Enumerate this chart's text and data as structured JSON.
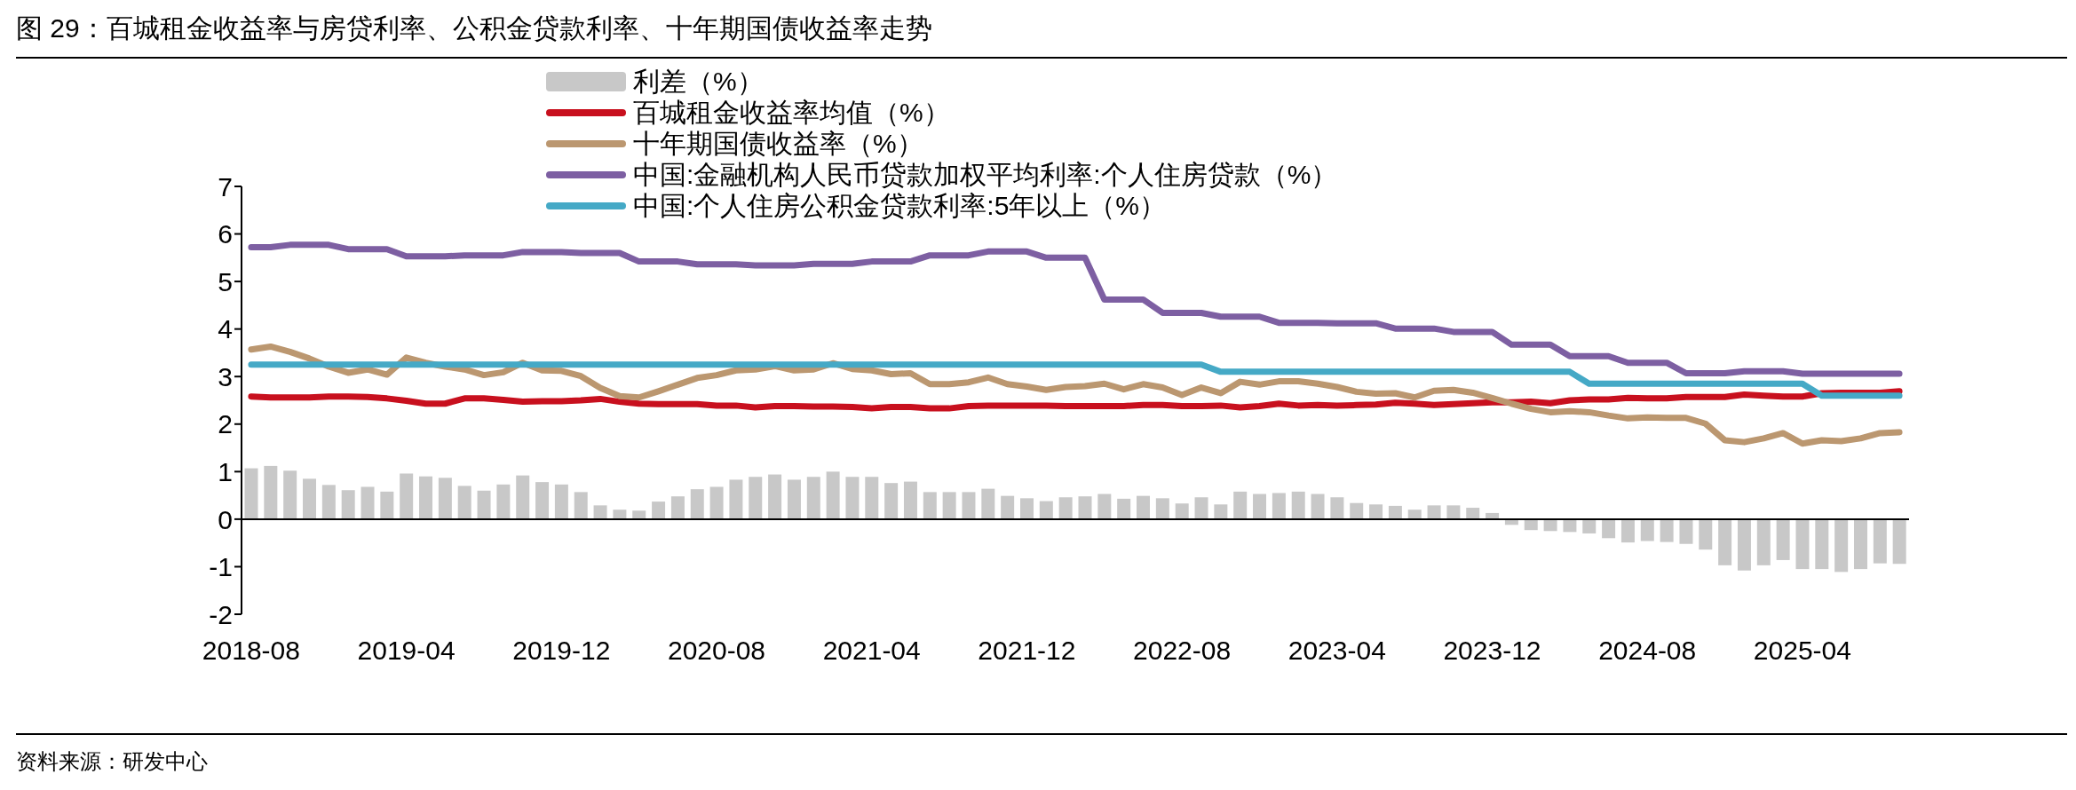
{
  "chart_data": {
    "type": "line",
    "title": "图 29：百城租金收益率与房贷利率、公积金贷款利率、十年期国债收益率走势",
    "categories": [
      "2018-08",
      null,
      null,
      null,
      null,
      null,
      null,
      null,
      "2019-04",
      null,
      null,
      null,
      null,
      null,
      null,
      null,
      "2019-12",
      null,
      null,
      null,
      null,
      null,
      null,
      null,
      "2020-08",
      null,
      null,
      null,
      null,
      null,
      null,
      null,
      "2021-04",
      null,
      null,
      null,
      null,
      null,
      null,
      null,
      "2021-12",
      null,
      null,
      null,
      null,
      null,
      null,
      null,
      "2022-08",
      null,
      null,
      null,
      null,
      null,
      null,
      null,
      "2023-04",
      null,
      null,
      null,
      null,
      null,
      null,
      null,
      "2023-12",
      null,
      null,
      null,
      null,
      null,
      null,
      null,
      "2024-08",
      null,
      null,
      null,
      null,
      null,
      null,
      null,
      "2025-04",
      null,
      null,
      null,
      null,
      null
    ],
    "series": [
      {
        "type": "bar",
        "name": "利差（%）",
        "color": "#c8c8c8",
        "values": [
          1.07,
          1.12,
          1.02,
          0.85,
          0.72,
          0.61,
          0.68,
          0.58,
          0.96,
          0.9,
          0.87,
          0.7,
          0.6,
          0.73,
          0.92,
          0.78,
          0.73,
          0.57,
          0.29,
          0.2,
          0.18,
          0.37,
          0.48,
          0.63,
          0.68,
          0.83,
          0.89,
          0.94,
          0.83,
          0.89,
          1.0,
          0.89,
          0.89,
          0.76,
          0.79,
          0.57,
          0.57,
          0.57,
          0.64,
          0.49,
          0.44,
          0.38,
          0.46,
          0.48,
          0.53,
          0.43,
          0.49,
          0.44,
          0.33,
          0.46,
          0.31,
          0.58,
          0.53,
          0.55,
          0.58,
          0.53,
          0.46,
          0.34,
          0.31,
          0.28,
          0.2,
          0.29,
          0.29,
          0.24,
          0.13,
          -0.12,
          -0.23,
          -0.25,
          -0.27,
          -0.3,
          -0.4,
          -0.49,
          -0.46,
          -0.48,
          -0.52,
          -0.64,
          -0.97,
          -1.08,
          -0.97,
          -0.86,
          -1.05,
          -1.05,
          -1.11,
          -1.05,
          -0.93,
          -0.94
        ]
      },
      {
        "name": "百城租金收益率均值（%）",
        "color": "#c8101e",
        "values": [
          2.58,
          2.56,
          2.56,
          2.56,
          2.58,
          2.58,
          2.57,
          2.54,
          2.49,
          2.43,
          2.43,
          2.54,
          2.54,
          2.51,
          2.47,
          2.48,
          2.48,
          2.5,
          2.53,
          2.47,
          2.43,
          2.42,
          2.42,
          2.42,
          2.39,
          2.39,
          2.35,
          2.38,
          2.38,
          2.37,
          2.37,
          2.36,
          2.33,
          2.36,
          2.36,
          2.33,
          2.33,
          2.38,
          2.39,
          2.39,
          2.39,
          2.39,
          2.38,
          2.38,
          2.38,
          2.38,
          2.4,
          2.4,
          2.38,
          2.38,
          2.39,
          2.35,
          2.38,
          2.43,
          2.39,
          2.4,
          2.39,
          2.4,
          2.41,
          2.45,
          2.43,
          2.4,
          2.42,
          2.44,
          2.46,
          2.46,
          2.47,
          2.44,
          2.5,
          2.52,
          2.52,
          2.55,
          2.54,
          2.54,
          2.57,
          2.57,
          2.57,
          2.62,
          2.6,
          2.58,
          2.58,
          2.65,
          2.66,
          2.66,
          2.66,
          2.69
        ]
      },
      {
        "name": "十年期国债收益率（%）",
        "color": "#bb9770",
        "values": [
          3.57,
          3.63,
          3.52,
          3.38,
          3.21,
          3.08,
          3.15,
          3.04,
          3.4,
          3.29,
          3.21,
          3.15,
          3.03,
          3.09,
          3.29,
          3.13,
          3.12,
          3.01,
          2.76,
          2.59,
          2.56,
          2.69,
          2.83,
          2.97,
          3.03,
          3.13,
          3.15,
          3.22,
          3.13,
          3.15,
          3.28,
          3.16,
          3.13,
          3.05,
          3.07,
          2.84,
          2.84,
          2.88,
          2.98,
          2.84,
          2.79,
          2.72,
          2.78,
          2.8,
          2.85,
          2.73,
          2.84,
          2.77,
          2.61,
          2.77,
          2.65,
          2.89,
          2.83,
          2.9,
          2.9,
          2.85,
          2.78,
          2.68,
          2.64,
          2.65,
          2.56,
          2.7,
          2.72,
          2.66,
          2.55,
          2.43,
          2.32,
          2.25,
          2.27,
          2.25,
          2.18,
          2.12,
          2.14,
          2.13,
          2.13,
          2.01,
          1.66,
          1.62,
          1.7,
          1.81,
          1.59,
          1.66,
          1.64,
          1.7,
          1.81,
          1.83
        ]
      },
      {
        "name": "中国:金融机构人民币贷款加权平均利率:个人住房贷款（%）",
        "color": "#7d5fa2",
        "values": [
          5.72,
          5.72,
          5.77,
          5.77,
          5.77,
          5.68,
          5.68,
          5.68,
          5.53,
          5.53,
          5.53,
          5.55,
          5.55,
          5.55,
          5.62,
          5.62,
          5.62,
          5.6,
          5.6,
          5.6,
          5.42,
          5.42,
          5.42,
          5.36,
          5.36,
          5.36,
          5.34,
          5.34,
          5.34,
          5.37,
          5.37,
          5.37,
          5.42,
          5.42,
          5.42,
          5.55,
          5.55,
          5.55,
          5.63,
          5.63,
          5.63,
          5.5,
          5.5,
          5.5,
          4.62,
          4.62,
          4.62,
          4.34,
          4.34,
          4.34,
          4.26,
          4.26,
          4.26,
          4.13,
          4.13,
          4.13,
          4.12,
          4.12,
          4.12,
          4.01,
          4.01,
          4.01,
          3.94,
          3.94,
          3.94,
          3.67,
          3.67,
          3.67,
          3.43,
          3.43,
          3.43,
          3.29,
          3.29,
          3.29,
          3.07,
          3.07,
          3.07,
          3.11,
          3.11,
          3.11,
          3.06,
          3.06,
          3.06,
          3.06,
          3.06,
          3.06
        ]
      },
      {
        "name": "中国:个人住房公积金贷款利率:5年以上（%）",
        "color": "#45a9c6",
        "values": [
          3.25,
          3.25,
          3.25,
          3.25,
          3.25,
          3.25,
          3.25,
          3.25,
          3.25,
          3.25,
          3.25,
          3.25,
          3.25,
          3.25,
          3.25,
          3.25,
          3.25,
          3.25,
          3.25,
          3.25,
          3.25,
          3.25,
          3.25,
          3.25,
          3.25,
          3.25,
          3.25,
          3.25,
          3.25,
          3.25,
          3.25,
          3.25,
          3.25,
          3.25,
          3.25,
          3.25,
          3.25,
          3.25,
          3.25,
          3.25,
          3.25,
          3.25,
          3.25,
          3.25,
          3.25,
          3.25,
          3.25,
          3.25,
          3.25,
          3.25,
          3.1,
          3.1,
          3.1,
          3.1,
          3.1,
          3.1,
          3.1,
          3.1,
          3.1,
          3.1,
          3.1,
          3.1,
          3.1,
          3.1,
          3.1,
          3.1,
          3.1,
          3.1,
          3.1,
          2.85,
          2.85,
          2.85,
          2.85,
          2.85,
          2.85,
          2.85,
          2.85,
          2.85,
          2.85,
          2.85,
          2.85,
          2.6,
          2.6,
          2.6,
          2.6,
          2.6
        ]
      }
    ],
    "ylim": [
      -2,
      7
    ],
    "yticks": [
      -2,
      -1,
      0,
      1,
      2,
      3,
      4,
      5,
      6,
      7
    ],
    "legend": "top",
    "annotations": [
      "资料来源：研发中心"
    ]
  }
}
